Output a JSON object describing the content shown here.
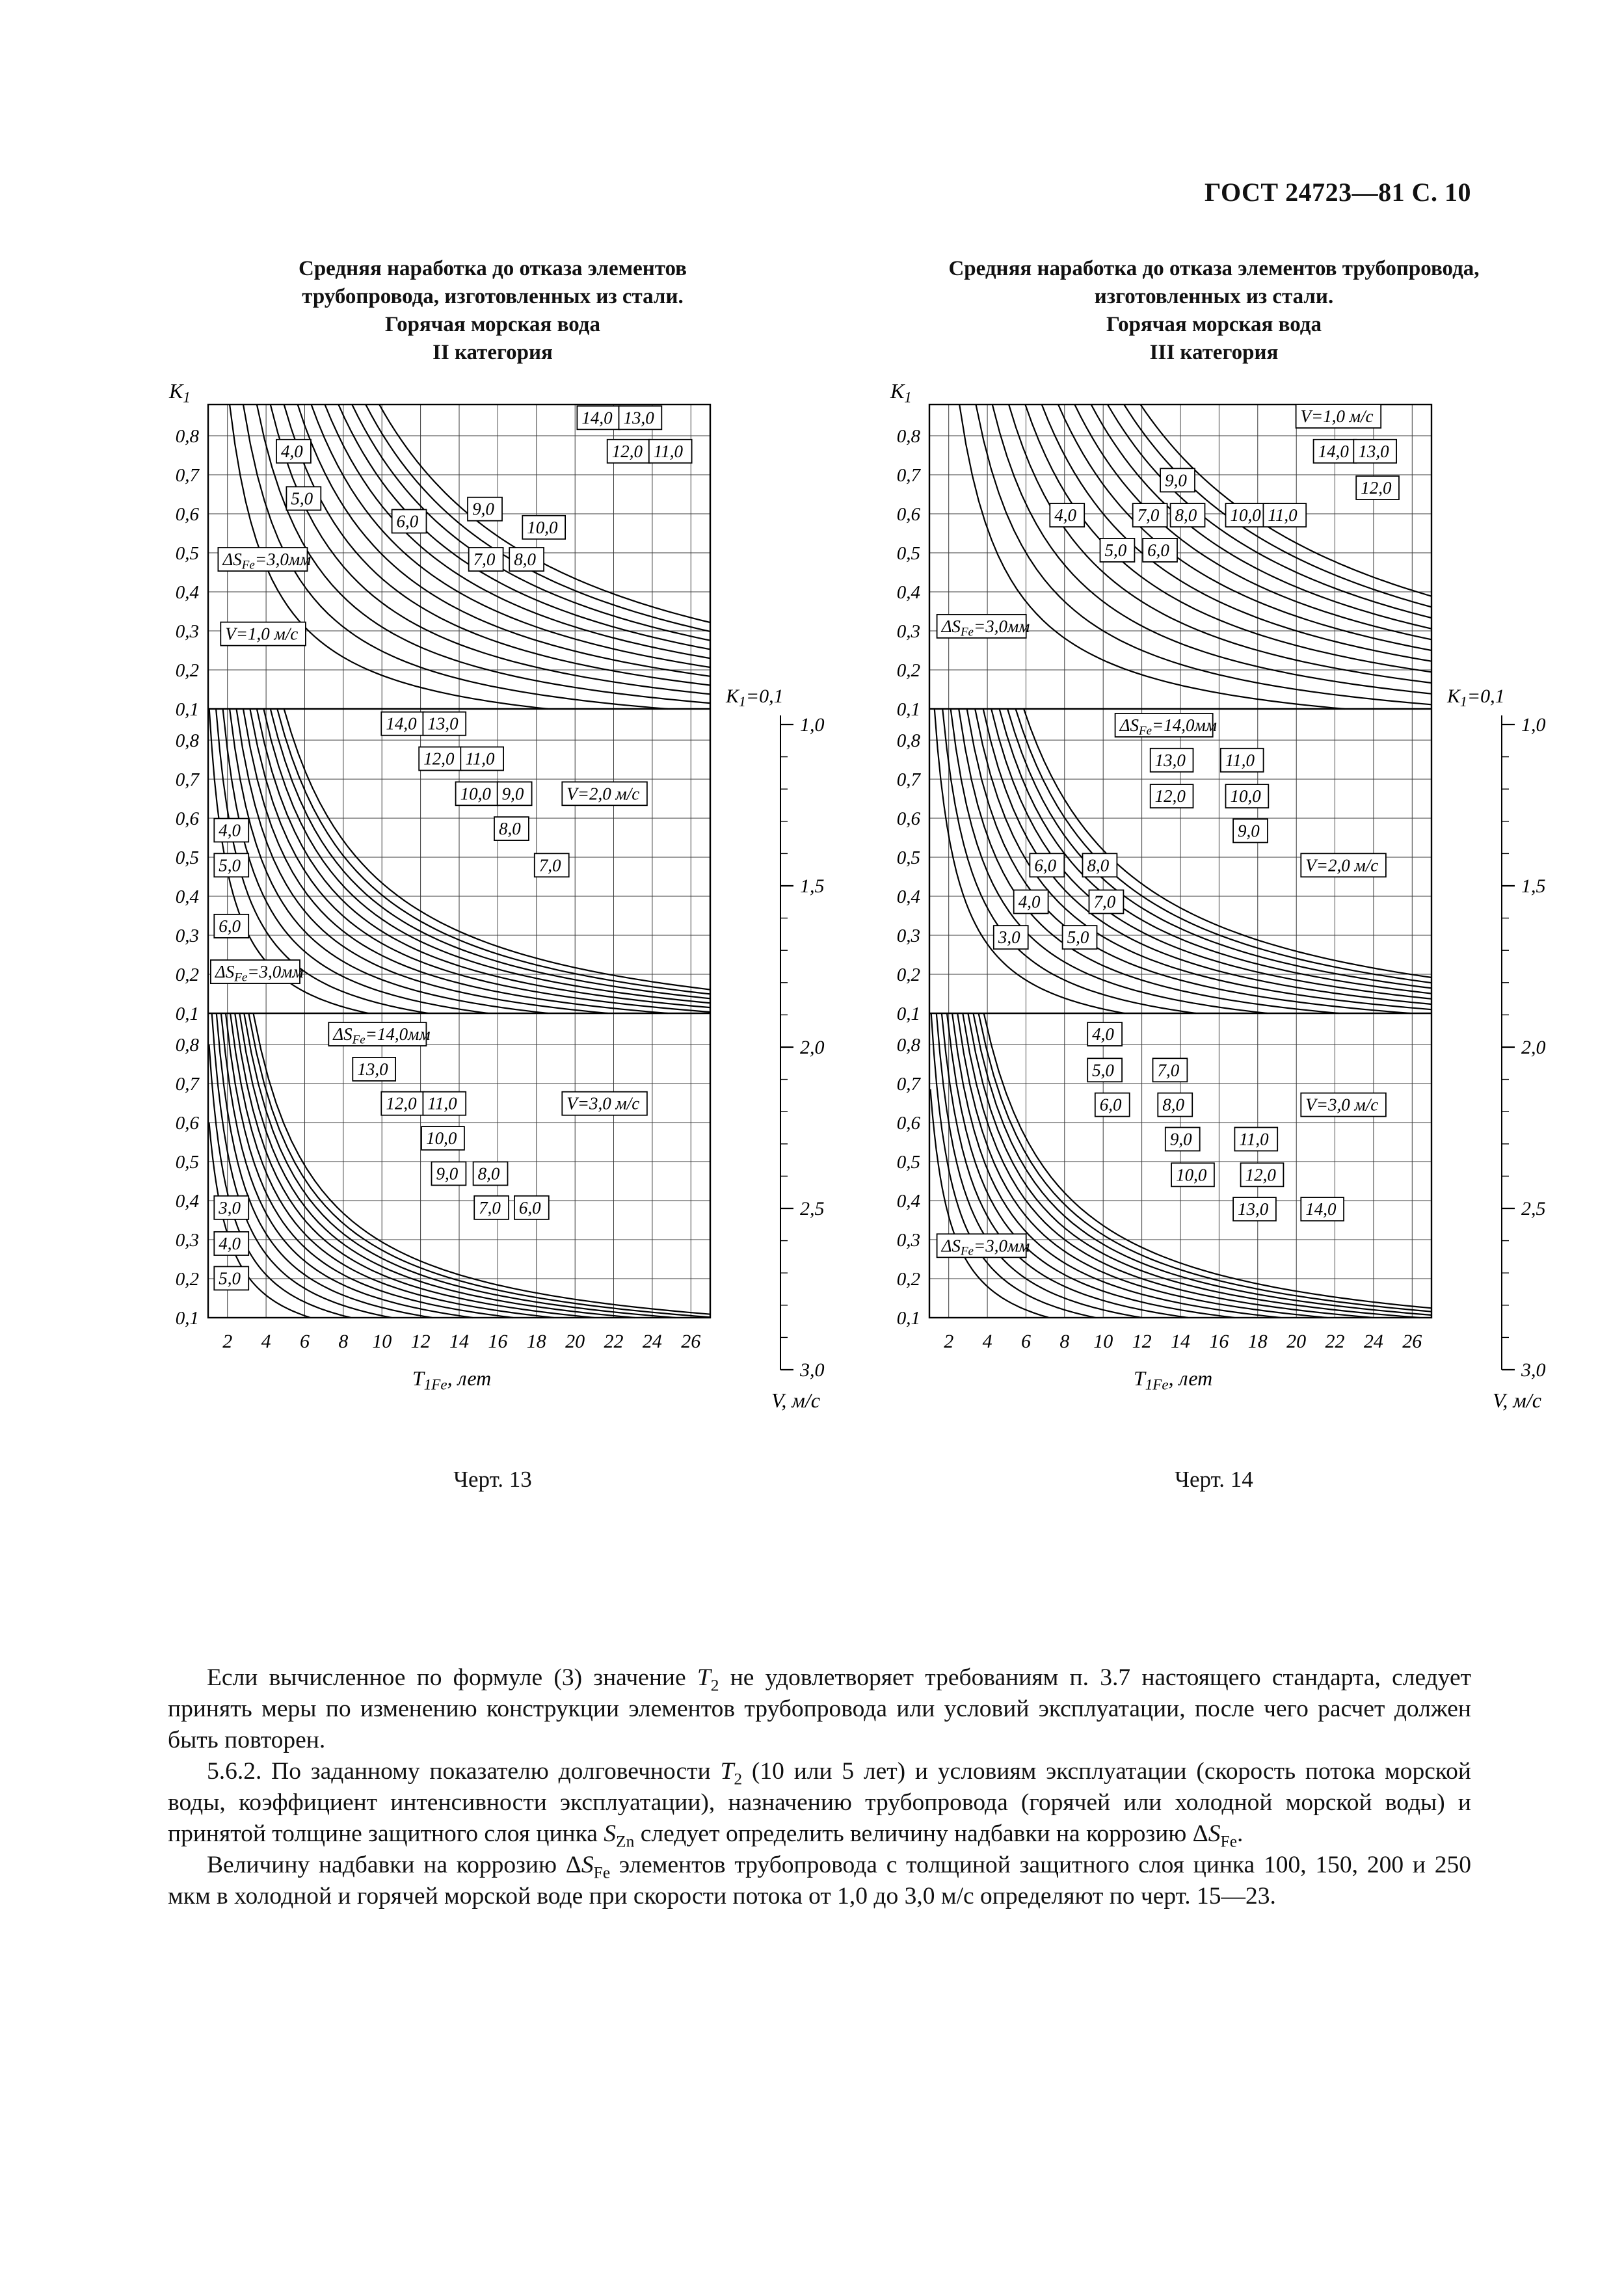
{
  "page": {
    "header": "ГОСТ 24723—81 С. 10"
  },
  "figures": [
    {
      "title_lines": [
        "Средняя наработка до отказа элементов",
        "трубопровода, изготовленных из стали.",
        "Горячая морская вода",
        "II категория"
      ],
      "caption": "Черт. 13"
    },
    {
      "title_lines": [
        "Средняя наработка до отказа элементов трубопровода,",
        "изготовленных из стали.",
        "Горячая морская вода",
        "III категория"
      ],
      "caption": "Черт. 14"
    }
  ],
  "chart_data": [
    {
      "type": "line",
      "title": "Средняя наработка до отказа элементов трубопровода, изготовленных из стали. Горячая морская вода. II категория",
      "xlabel": "Т_1Fe, лет",
      "ylabel": "К_1",
      "xlim": [
        1,
        27
      ],
      "x_ticks": [
        2,
        4,
        6,
        8,
        10,
        12,
        14,
        16,
        18,
        20,
        22,
        24,
        26
      ],
      "panel_y_ticks": [
        "0,8",
        "0,7",
        "0,6",
        "0,5",
        "0,4",
        "0,3",
        "0,2",
        "0,1"
      ],
      "grid": true,
      "curve_param_name": "ΔS_Fe, мм",
      "curve_values": [
        3,
        4,
        5,
        6,
        7,
        8,
        9,
        10,
        11,
        12,
        13,
        14
      ],
      "right_axis": {
        "top_label": "К_1=0,1",
        "ticks": [
          "1,0",
          "1,5",
          "2,0",
          "2,5",
          "3,0"
        ],
        "label": "V, м/с"
      },
      "panels": [
        {
          "velocity": "V = 1,0 м/с",
          "curve_scale": 0.62,
          "labels": [
            {
              "t": "4,0",
              "x": 0.136,
              "y": 0.115
            },
            {
              "t": "5,0",
              "x": 0.156,
              "y": 0.27
            },
            {
              "t": "ΔS_Fe=3,0мм",
              "x": 0.02,
              "y": 0.47
            },
            {
              "t": "6,0",
              "x": 0.366,
              "y": 0.345
            },
            {
              "t": "9,0",
              "x": 0.517,
              "y": 0.305
            },
            {
              "t": "10,0",
              "x": 0.626,
              "y": 0.365
            },
            {
              "t": "7,0",
              "x": 0.519,
              "y": 0.47
            },
            {
              "t": "8,0",
              "x": 0.6,
              "y": 0.47
            },
            {
              "t": "14,0",
              "x": 0.735,
              "y": 0.005
            },
            {
              "t": "13,0",
              "x": 0.818,
              "y": 0.005
            },
            {
              "t": "12,0",
              "x": 0.795,
              "y": 0.115
            },
            {
              "t": "11,0",
              "x": 0.878,
              "y": 0.115
            },
            {
              "t": "V=1,0 м/с",
              "x": 0.025,
              "y": 0.715
            }
          ]
        },
        {
          "velocity": "V = 2,0 м/с",
          "curve_scale": 0.31,
          "labels": [
            {
              "t": "14,0",
              "x": 0.345,
              "y": 0.01
            },
            {
              "t": "13,0",
              "x": 0.428,
              "y": 0.01
            },
            {
              "t": "12,0",
              "x": 0.42,
              "y": 0.125
            },
            {
              "t": "11,0",
              "x": 0.503,
              "y": 0.125
            },
            {
              "t": "10,0",
              "x": 0.493,
              "y": 0.24
            },
            {
              "t": "9,0",
              "x": 0.576,
              "y": 0.24
            },
            {
              "t": "8,0",
              "x": 0.57,
              "y": 0.355
            },
            {
              "t": "V=2,0 м/с",
              "x": 0.705,
              "y": 0.24
            },
            {
              "t": "7,0",
              "x": 0.65,
              "y": 0.475
            },
            {
              "t": "4,0",
              "x": 0.012,
              "y": 0.36
            },
            {
              "t": "5,0",
              "x": 0.012,
              "y": 0.475
            },
            {
              "t": "6,0",
              "x": 0.012,
              "y": 0.675
            },
            {
              "t": "ΔS_Fe=3,0мм",
              "x": 0.005,
              "y": 0.825
            }
          ]
        },
        {
          "velocity": "V = 3,0 м/с",
          "curve_scale": 0.21,
          "labels": [
            {
              "t": "ΔS_Fe=14,0мм",
              "x": 0.24,
              "y": 0.03
            },
            {
              "t": "13,0",
              "x": 0.288,
              "y": 0.145
            },
            {
              "t": "12,0",
              "x": 0.345,
              "y": 0.258
            },
            {
              "t": "11,0",
              "x": 0.428,
              "y": 0.258
            },
            {
              "t": "V=3,0 м/с",
              "x": 0.705,
              "y": 0.258
            },
            {
              "t": "10,0",
              "x": 0.425,
              "y": 0.372
            },
            {
              "t": "9,0",
              "x": 0.445,
              "y": 0.488
            },
            {
              "t": "8,0",
              "x": 0.528,
              "y": 0.488
            },
            {
              "t": "7,0",
              "x": 0.53,
              "y": 0.6
            },
            {
              "t": "6,0",
              "x": 0.61,
              "y": 0.6
            },
            {
              "t": "3,0",
              "x": 0.012,
              "y": 0.6
            },
            {
              "t": "4,0",
              "x": 0.012,
              "y": 0.718
            },
            {
              "t": "5,0",
              "x": 0.012,
              "y": 0.832
            }
          ]
        }
      ]
    },
    {
      "type": "line",
      "title": "Средняя наработка до отказа элементов трубопровода, изготовленных из стали. Горячая морская вода. III категория",
      "xlabel": "Т_1Fe, лет",
      "ylabel": "К_1",
      "xlim": [
        1,
        27
      ],
      "x_ticks": [
        2,
        4,
        6,
        8,
        10,
        12,
        14,
        16,
        18,
        20,
        22,
        24,
        26
      ],
      "panel_y_ticks": [
        "0,8",
        "0,7",
        "0,6",
        "0,5",
        "0,4",
        "0,3",
        "0,2",
        "0,1"
      ],
      "grid": true,
      "curve_param_name": "ΔS_Fe, мм",
      "curve_values": [
        3,
        4,
        5,
        6,
        7,
        8,
        9,
        10,
        11,
        12,
        13,
        14
      ],
      "right_axis": {
        "top_label": "К_1=0,1",
        "ticks": [
          "1,0",
          "1,5",
          "2,0",
          "2,5",
          "3,0"
        ],
        "label": "V, м/с"
      },
      "panels": [
        {
          "velocity": "V = 1,0 м/с",
          "curve_scale": 0.75,
          "labels": [
            {
              "t": "V=1,0 м/с",
              "x": 0.73,
              "y": 0.0
            },
            {
              "t": "9,0",
              "x": 0.46,
              "y": 0.21
            },
            {
              "t": "14,0",
              "x": 0.765,
              "y": 0.115
            },
            {
              "t": "13,0",
              "x": 0.845,
              "y": 0.115
            },
            {
              "t": "12,0",
              "x": 0.85,
              "y": 0.235
            },
            {
              "t": "4,0",
              "x": 0.24,
              "y": 0.325
            },
            {
              "t": "7,0",
              "x": 0.405,
              "y": 0.325
            },
            {
              "t": "8,0",
              "x": 0.48,
              "y": 0.325
            },
            {
              "t": "10,0",
              "x": 0.59,
              "y": 0.325
            },
            {
              "t": "11,0",
              "x": 0.665,
              "y": 0.325
            },
            {
              "t": "5,0",
              "x": 0.34,
              "y": 0.44
            },
            {
              "t": "6,0",
              "x": 0.425,
              "y": 0.44
            },
            {
              "t": "ΔS_Fe=3,0мм",
              "x": 0.015,
              "y": 0.69
            }
          ]
        },
        {
          "velocity": "V = 2,0 м/с",
          "curve_scale": 0.37,
          "labels": [
            {
              "t": "ΔS_Fe=14,0мм",
              "x": 0.37,
              "y": 0.015
            },
            {
              "t": "13,0",
              "x": 0.44,
              "y": 0.13
            },
            {
              "t": "11,0",
              "x": 0.58,
              "y": 0.13
            },
            {
              "t": "12,0",
              "x": 0.44,
              "y": 0.248
            },
            {
              "t": "10,0",
              "x": 0.59,
              "y": 0.248
            },
            {
              "t": "9,0",
              "x": 0.605,
              "y": 0.362
            },
            {
              "t": "V=2,0 м/с",
              "x": 0.74,
              "y": 0.475
            },
            {
              "t": "6,0",
              "x": 0.2,
              "y": 0.475
            },
            {
              "t": "8,0",
              "x": 0.305,
              "y": 0.475
            },
            {
              "t": "4,0",
              "x": 0.168,
              "y": 0.595
            },
            {
              "t": "7,0",
              "x": 0.318,
              "y": 0.595
            },
            {
              "t": "3,0",
              "x": 0.128,
              "y": 0.712
            },
            {
              "t": "5,0",
              "x": 0.265,
              "y": 0.712
            }
          ]
        },
        {
          "velocity": "V = 3,0 м/с",
          "curve_scale": 0.24,
          "labels": [
            {
              "t": "4,0",
              "x": 0.315,
              "y": 0.03
            },
            {
              "t": "5,0",
              "x": 0.315,
              "y": 0.148
            },
            {
              "t": "7,0",
              "x": 0.445,
              "y": 0.148
            },
            {
              "t": "6,0",
              "x": 0.33,
              "y": 0.262
            },
            {
              "t": "8,0",
              "x": 0.455,
              "y": 0.262
            },
            {
              "t": "V=3,0 м/с",
              "x": 0.74,
              "y": 0.262
            },
            {
              "t": "9,0",
              "x": 0.47,
              "y": 0.375
            },
            {
              "t": "11,0",
              "x": 0.608,
              "y": 0.375
            },
            {
              "t": "10,0",
              "x": 0.482,
              "y": 0.492
            },
            {
              "t": "12,0",
              "x": 0.62,
              "y": 0.492
            },
            {
              "t": "13,0",
              "x": 0.605,
              "y": 0.605
            },
            {
              "t": "14,0",
              "x": 0.74,
              "y": 0.605
            },
            {
              "t": "ΔS_Fe=3,0мм",
              "x": 0.015,
              "y": 0.725
            }
          ]
        }
      ]
    }
  ],
  "paragraphs": [
    {
      "segments": [
        {
          "t": "Если вычисленное по формуле (3) значение "
        },
        {
          "t": "Т",
          "i": true
        },
        {
          "t": "2",
          "sub": true
        },
        {
          "t": " не удовлетворяет требованиям п. 3.7 настоящего стандарта, следует принять меры по изменению конструкции элементов трубопровода или условий эксплуатации, после чего расчет должен быть повторен."
        }
      ]
    },
    {
      "segments": [
        {
          "t": "5.6.2. По заданному показателю долговечности "
        },
        {
          "t": "Т",
          "i": true
        },
        {
          "t": "2",
          "sub": true
        },
        {
          "t": " (10 или 5 лет) и условиям эксплуатации (скорость потока морской воды, коэффициент интенсивности эксплуатации), назначению трубопровода (горячей или холодной морской воды) и принятой толщине защитного слоя цинка "
        },
        {
          "t": "S",
          "i": true
        },
        {
          "t": "Zn",
          "sub": true
        },
        {
          "t": " следует определить величину надбавки на коррозию Δ"
        },
        {
          "t": "S",
          "i": true
        },
        {
          "t": "Fe",
          "sub": true
        },
        {
          "t": "."
        }
      ]
    },
    {
      "segments": [
        {
          "t": "Величину надбавки на коррозию Δ"
        },
        {
          "t": "S",
          "i": true
        },
        {
          "t": "Fe",
          "sub": true
        },
        {
          "t": " элементов трубопровода с толщиной защитного слоя цинка 100, 150, 200 и 250 мкм в холодной и горячей морской воде при скорости потока от 1,0 до 3,0 м/с определяют по черт. 15—23."
        }
      ]
    }
  ]
}
